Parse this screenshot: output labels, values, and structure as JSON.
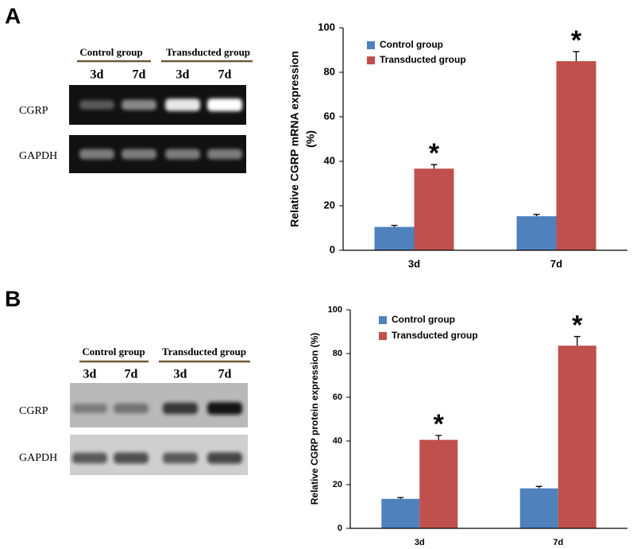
{
  "panels": [
    {
      "label": "A"
    },
    {
      "label": "B"
    }
  ],
  "blots": [
    {
      "groups": [
        "Control group",
        "Transducted group"
      ],
      "lanes": [
        "3d",
        "7d",
        "3d",
        "7d"
      ],
      "rows": [
        "CGRP",
        "GAPDH"
      ]
    },
    {
      "groups": [
        "Control group",
        "Transducted group"
      ],
      "lanes": [
        "3d",
        "7d",
        "3d",
        "7d"
      ],
      "rows": [
        "CGRP",
        "GAPDH"
      ]
    }
  ],
  "chart_data": [
    {
      "type": "bar",
      "ylabel": [
        "Relative CGRP mRNA expression",
        "(%)"
      ],
      "categories": [
        "3d",
        "7d"
      ],
      "series": [
        {
          "name": "Control group",
          "color": "#4f81bd",
          "values": [
            10.5,
            15.3
          ],
          "errors": [
            0.7,
            0.8
          ]
        },
        {
          "name": "Transducted group",
          "color": "#c0504d",
          "values": [
            36.7,
            85
          ],
          "errors": [
            1.8,
            4.3
          ],
          "markers": [
            "*",
            "*"
          ]
        }
      ],
      "ylim": [
        0,
        100
      ],
      "yticks": [
        0,
        20,
        40,
        60,
        80,
        100
      ],
      "legend": "upper left"
    },
    {
      "type": "bar",
      "ylabel": [
        "Relative CGRP protein expression (%)"
      ],
      "categories": [
        "3d",
        "7d"
      ],
      "series": [
        {
          "name": "Control group",
          "color": "#4f81bd",
          "values": [
            13.5,
            18.3
          ],
          "errors": [
            0.6,
            0.9
          ]
        },
        {
          "name": "Transducted group",
          "color": "#c0504d",
          "values": [
            40.5,
            83.6
          ],
          "errors": [
            2.0,
            4.2
          ],
          "markers": [
            "*",
            "*"
          ]
        }
      ],
      "ylim": [
        0,
        100
      ],
      "yticks": [
        0,
        20,
        40,
        60,
        80,
        100
      ],
      "legend": "upper left"
    }
  ]
}
